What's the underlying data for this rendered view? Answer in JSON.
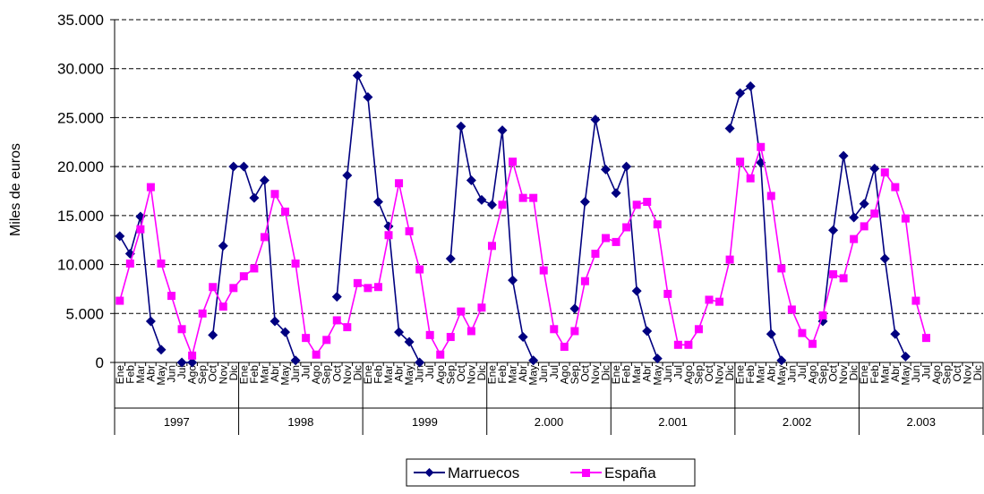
{
  "chart_data": {
    "type": "line",
    "title": "",
    "xlabel": "",
    "ylabel": "Miles de euros",
    "ylim": [
      0,
      35000
    ],
    "yticks": [
      "0",
      "5.000",
      "10.000",
      "15.000",
      "20.000",
      "25.000",
      "30.000",
      "35.000"
    ],
    "grid": "horizontal dashed",
    "legend_position": "bottom",
    "months": [
      "Ene",
      "Feb",
      "Mar",
      "Abr",
      "May",
      "Jun",
      "Jul",
      "Ago",
      "Sep",
      "Oct",
      "Nov",
      "Dic"
    ],
    "years": [
      "1997",
      "1998",
      "1999",
      "2.000",
      "2.001",
      "2.002",
      "2.003"
    ],
    "series": [
      {
        "name": "Marruecos",
        "color": "#000080",
        "marker": "diamond",
        "values": [
          12900,
          11100,
          14900,
          4200,
          1300,
          null,
          0,
          0,
          null,
          2800,
          11900,
          20000,
          20000,
          16800,
          18600,
          4200,
          3100,
          200,
          null,
          null,
          null,
          6700,
          19100,
          29300,
          27100,
          16400,
          13900,
          3100,
          2100,
          0,
          null,
          null,
          10600,
          24100,
          18600,
          16600,
          16100,
          23700,
          8400,
          2600,
          200,
          null,
          null,
          null,
          5500,
          16400,
          24800,
          19700,
          17300,
          20000,
          7300,
          3200,
          400,
          null,
          null,
          null,
          null,
          null,
          null,
          23900,
          27500,
          28200,
          20400,
          2900,
          200,
          null,
          null,
          null,
          4200,
          13500,
          21100,
          14800,
          16200,
          19800,
          10600,
          2900,
          600,
          null,
          null,
          null,
          null,
          null,
          null,
          null
        ]
      },
      {
        "name": "España",
        "color": "#FF00FF",
        "marker": "square",
        "values": [
          6300,
          10100,
          13600,
          17900,
          10100,
          6800,
          3400,
          700,
          5000,
          7700,
          5700,
          7600,
          8800,
          9600,
          12800,
          17200,
          15400,
          10100,
          2500,
          800,
          2300,
          4300,
          3600,
          8100,
          7600,
          7700,
          13000,
          18300,
          13400,
          9500,
          2800,
          800,
          2600,
          5200,
          3200,
          5600,
          11900,
          16100,
          20500,
          16800,
          16800,
          9400,
          3400,
          1600,
          3200,
          8300,
          11100,
          12700,
          12300,
          13800,
          16100,
          16400,
          14100,
          7000,
          1800,
          1800,
          3400,
          6400,
          6200,
          10500,
          20500,
          18800,
          22000,
          17000,
          9600,
          5400,
          3000,
          1900,
          4800,
          9000,
          8600,
          12600,
          13900,
          15200,
          19400,
          17900,
          14700,
          6300,
          2500,
          null,
          null,
          null,
          null,
          null
        ]
      }
    ]
  }
}
